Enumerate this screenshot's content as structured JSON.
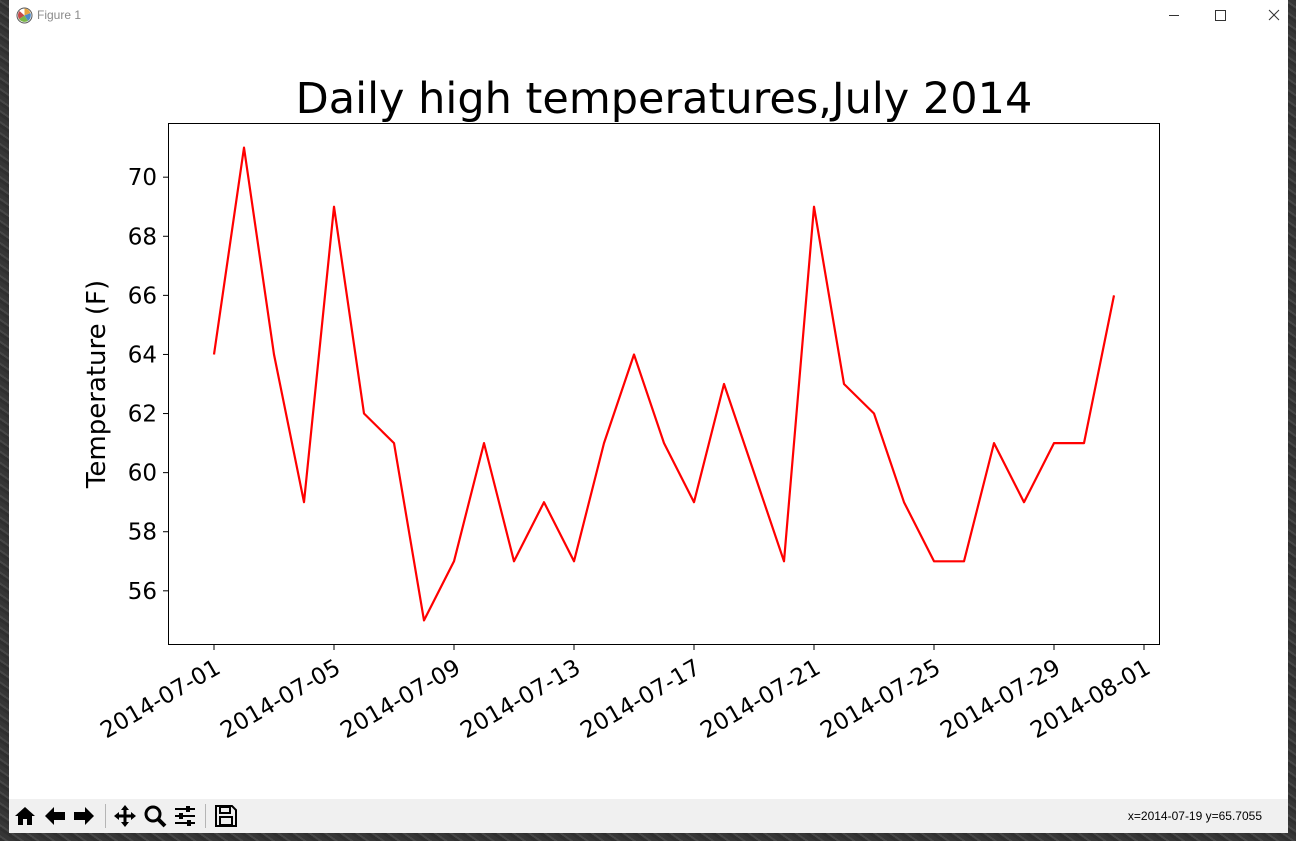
{
  "window": {
    "title": "Figure 1"
  },
  "toolbar": {
    "buttons": [
      {
        "name": "home",
        "icon": "home-icon"
      },
      {
        "name": "back",
        "icon": "arrow-left-icon"
      },
      {
        "name": "forward",
        "icon": "arrow-right-icon"
      },
      {
        "name": "pan",
        "icon": "move-icon"
      },
      {
        "name": "zoom",
        "icon": "magnifier-icon"
      },
      {
        "name": "configure",
        "icon": "sliders-icon"
      },
      {
        "name": "save",
        "icon": "floppy-disk-icon"
      }
    ],
    "coordinates": "x=2014-07-19 y=65.7055"
  },
  "chart_data": {
    "type": "line",
    "title": "Daily high temperatures,July 2014",
    "xlabel": "",
    "ylabel": "Temperature (F)",
    "x": [
      "2014-07-01",
      "2014-07-02",
      "2014-07-03",
      "2014-07-04",
      "2014-07-05",
      "2014-07-06",
      "2014-07-07",
      "2014-07-08",
      "2014-07-09",
      "2014-07-10",
      "2014-07-11",
      "2014-07-12",
      "2014-07-13",
      "2014-07-14",
      "2014-07-15",
      "2014-07-16",
      "2014-07-17",
      "2014-07-18",
      "2014-07-19",
      "2014-07-20",
      "2014-07-21",
      "2014-07-22",
      "2014-07-23",
      "2014-07-24",
      "2014-07-25",
      "2014-07-26",
      "2014-07-27",
      "2014-07-28",
      "2014-07-29",
      "2014-07-30",
      "2014-07-31"
    ],
    "series": [
      {
        "values": [
          64,
          71,
          64,
          59,
          69,
          62,
          61,
          55,
          57,
          61,
          57,
          59,
          57,
          61,
          64,
          61,
          59,
          63,
          60,
          57,
          69,
          63,
          62,
          59,
          57,
          57,
          61,
          59,
          61,
          61,
          66
        ],
        "color": "#ff0000"
      }
    ],
    "xticks": [
      "2014-07-01",
      "2014-07-05",
      "2014-07-09",
      "2014-07-13",
      "2014-07-17",
      "2014-07-21",
      "2014-07-25",
      "2014-07-29",
      "2014-08-01"
    ],
    "yticks": [
      56,
      58,
      60,
      62,
      64,
      66,
      68,
      70
    ],
    "ylim": [
      54.2,
      71.8
    ],
    "xlim": [
      "2014-06-29 12:00",
      "2014-08-01 12:00"
    ],
    "grid": false
  }
}
